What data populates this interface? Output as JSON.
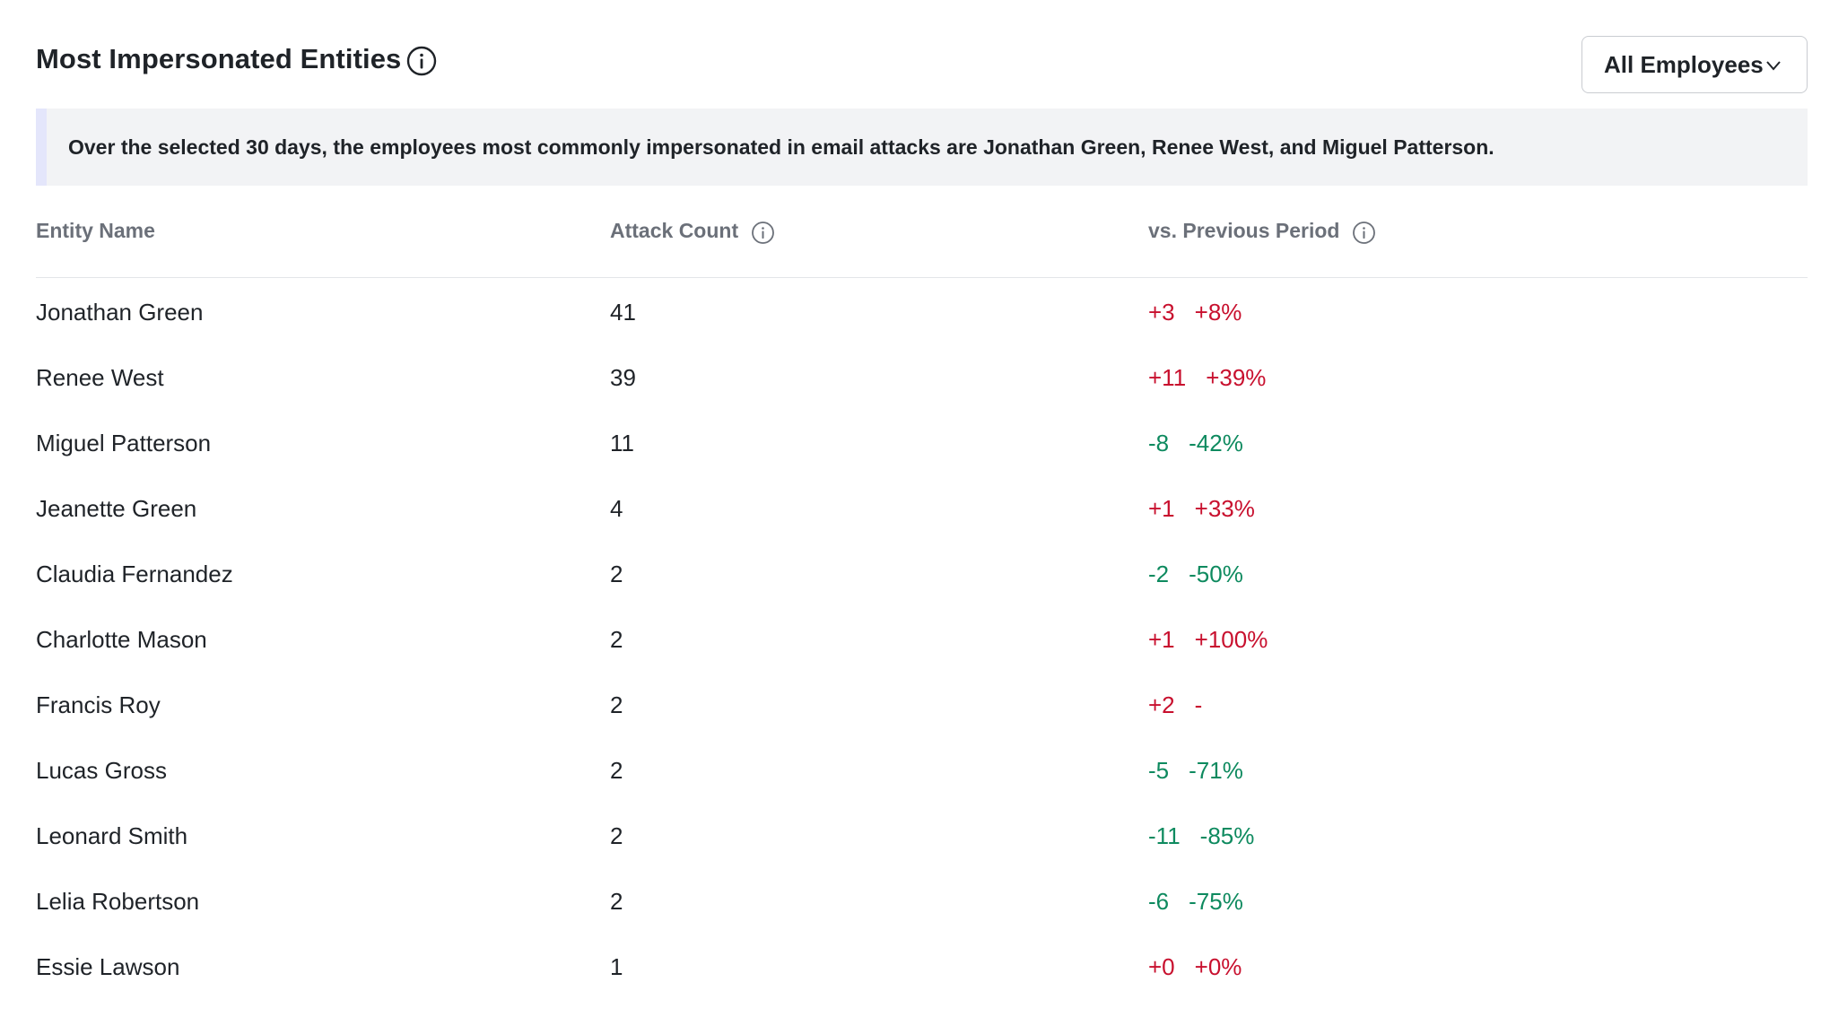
{
  "header": {
    "title": "Most Impersonated Entities",
    "filter_label": "All Employees"
  },
  "summary": "Over the selected 30 days, the employees most commonly impersonated in email attacks are Jonathan Green, Renee West, and Miguel Patterson.",
  "table": {
    "columns": [
      "Entity Name",
      "Attack Count",
      "vs. Previous Period"
    ],
    "rows": [
      {
        "name": "Jonathan Green",
        "count": "41",
        "delta": "+3",
        "pct": "+8%",
        "trend": "up"
      },
      {
        "name": "Renee West",
        "count": "39",
        "delta": "+11",
        "pct": "+39%",
        "trend": "up"
      },
      {
        "name": "Miguel Patterson",
        "count": "11",
        "delta": "-8",
        "pct": "-42%",
        "trend": "down"
      },
      {
        "name": "Jeanette Green",
        "count": "4",
        "delta": "+1",
        "pct": "+33%",
        "trend": "up"
      },
      {
        "name": "Claudia Fernandez",
        "count": "2",
        "delta": "-2",
        "pct": "-50%",
        "trend": "down"
      },
      {
        "name": "Charlotte Mason",
        "count": "2",
        "delta": "+1",
        "pct": "+100%",
        "trend": "up"
      },
      {
        "name": "Francis Roy",
        "count": "2",
        "delta": "+2",
        "pct": "-",
        "trend": "up"
      },
      {
        "name": "Lucas Gross",
        "count": "2",
        "delta": "-5",
        "pct": "-71%",
        "trend": "down"
      },
      {
        "name": "Leonard Smith",
        "count": "2",
        "delta": "-11",
        "pct": "-85%",
        "trend": "down"
      },
      {
        "name": "Lelia Robertson",
        "count": "2",
        "delta": "-6",
        "pct": "-75%",
        "trend": "down"
      },
      {
        "name": "Essie Lawson",
        "count": "1",
        "delta": "+0",
        "pct": "+0%",
        "trend": "up"
      }
    ]
  },
  "colors": {
    "increase": "#c8102e",
    "decrease": "#0e8a5f",
    "summary_bg": "#f2f3f5",
    "summary_accent": "#e4e6fb"
  },
  "icons": {
    "title_info": "info-circle-icon",
    "dropdown": "chevron-down-icon",
    "column_info": "info-circle-icon"
  }
}
